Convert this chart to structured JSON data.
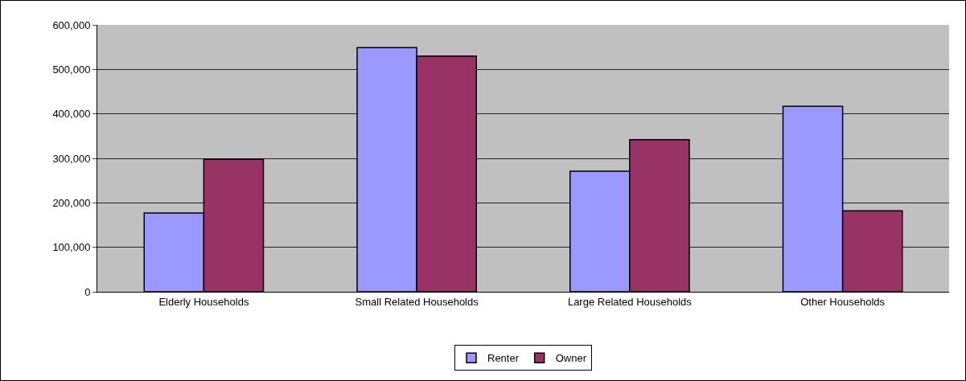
{
  "chart_data": {
    "type": "bar",
    "categories": [
      "Elderly Households",
      "Small Related Households",
      "Large Related Households",
      "Other Households"
    ],
    "series": [
      {
        "name": "Renter",
        "color": "#9999ff",
        "values": [
          177000,
          549000,
          271000,
          417000
        ]
      },
      {
        "name": "Owner",
        "color": "#993366",
        "values": [
          298000,
          530000,
          342000,
          182000
        ]
      }
    ],
    "ylim": [
      0,
      600000
    ],
    "yticks": [
      {
        "value": 0,
        "label": "0"
      },
      {
        "value": 100000,
        "label": "100,000"
      },
      {
        "value": 200000,
        "label": "200,000"
      },
      {
        "value": 300000,
        "label": "300,000"
      },
      {
        "value": 400000,
        "label": "400,000"
      },
      {
        "value": 500000,
        "label": "500,000"
      },
      {
        "value": 600000,
        "label": "600,000"
      }
    ],
    "grid": "y",
    "legend": "bottom"
  }
}
